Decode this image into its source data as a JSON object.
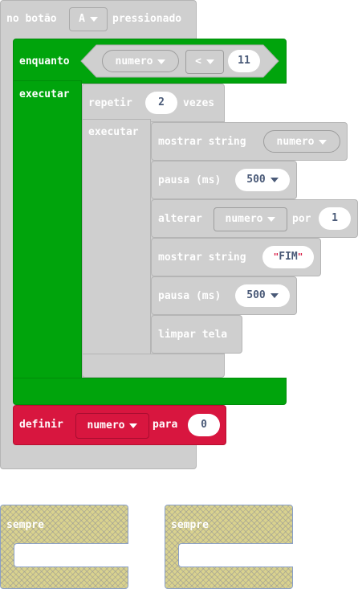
{
  "event_block": {
    "label": "no botão",
    "button_value": "A",
    "suffix": "pressionado"
  },
  "while_block": {
    "label": "enquanto",
    "do_label": "executar",
    "compare": {
      "left": "numero",
      "op": "<",
      "right": "11"
    }
  },
  "repeat_block": {
    "label": "repetir",
    "times": "2",
    "suffix": "vezes",
    "do_label": "executar"
  },
  "statements": [
    {
      "label": "mostrar string",
      "arg": "numero"
    },
    {
      "label": "pausa (ms)",
      "arg": "500"
    },
    {
      "label": "alterar",
      "var": "numero",
      "by_label": "por",
      "amount": "1"
    },
    {
      "label": "mostrar string",
      "arg": "FIM"
    },
    {
      "label": "pausa (ms)",
      "arg": "500"
    },
    {
      "label": "limpar tela"
    }
  ],
  "set_block": {
    "label": "definir",
    "var": "numero",
    "to_label": "para",
    "value": "0"
  },
  "forever_blocks": [
    {
      "label": "sempre"
    },
    {
      "label": "sempre"
    }
  ],
  "colors": {
    "event_gray": "#cfcfcf",
    "loops_green": "#00a40c",
    "variables_red": "#d8163f",
    "disabled_hatch": "#d9d28e"
  }
}
